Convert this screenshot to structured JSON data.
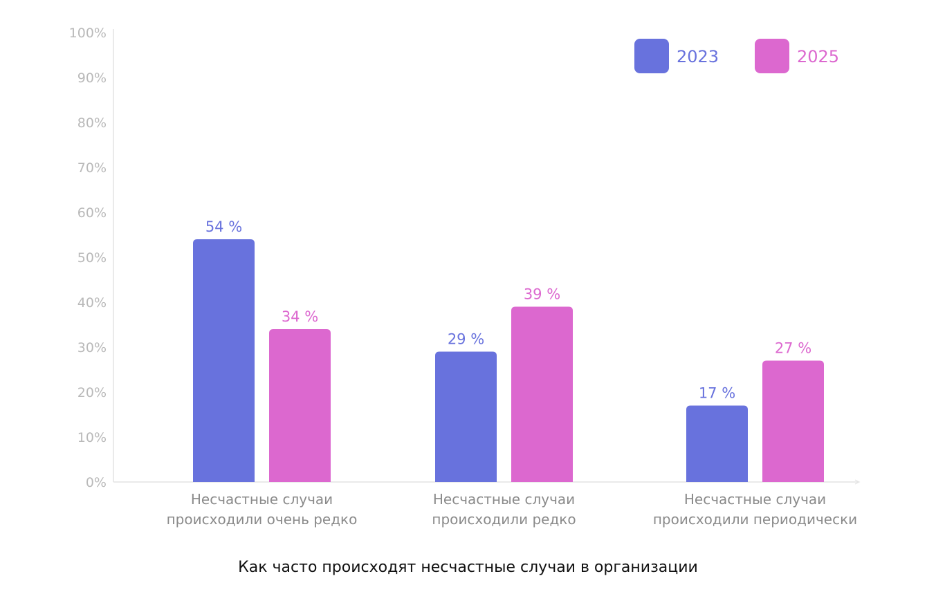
{
  "chart_data": {
    "type": "bar",
    "title": "Как часто происходят несчастные случаи в организации",
    "categories": [
      [
        "Несчастные случаи",
        "происходили очень редко"
      ],
      [
        "Несчастные случаи",
        "происходили редко"
      ],
      [
        "Несчастные случаи",
        "происходили периодически"
      ]
    ],
    "series": [
      {
        "name": "2023",
        "color": "#6872DD",
        "values": [
          54,
          29,
          17
        ],
        "labels": [
          "54 %",
          "29 %",
          "17 %"
        ]
      },
      {
        "name": "2025",
        "color": "#DC68CF",
        "values": [
          34,
          39,
          27
        ],
        "labels": [
          "34 %",
          "39 %",
          "27 %"
        ]
      }
    ],
    "ylim": [
      0,
      100
    ],
    "yticks": [
      "0%",
      "10%",
      "20%",
      "30%",
      "40%",
      "50%",
      "60%",
      "70%",
      "80%",
      "90%",
      "100%"
    ],
    "grid": false,
    "legend": "top-right"
  }
}
